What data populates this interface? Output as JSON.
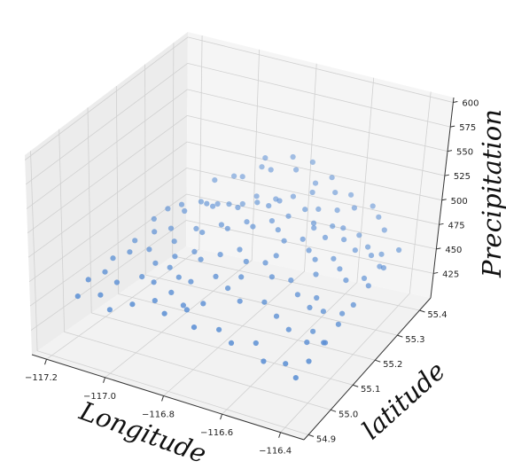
{
  "chart_data": {
    "type": "scatter",
    "title": "",
    "xlabel": "Longitude",
    "ylabel": "latitude",
    "zlabel": "Precipitation",
    "xlim": [
      -117.25,
      -116.32
    ],
    "ylim": [
      54.88,
      55.45
    ],
    "zlim": [
      400,
      605
    ],
    "xticks": [
      "−117.2",
      "−117.0",
      "−116.8",
      "−116.6",
      "−116.4"
    ],
    "xtick_values": [
      -117.2,
      -117.0,
      -116.8,
      -116.6,
      -116.4
    ],
    "yticks": [
      "54.9",
      "55.0",
      "55.1",
      "55.2",
      "55.3",
      "55.4"
    ],
    "ytick_values": [
      54.9,
      55.0,
      55.1,
      55.2,
      55.3,
      55.4
    ],
    "zticks": [
      "425",
      "450",
      "475",
      "500",
      "525",
      "550",
      "575",
      "600"
    ],
    "ztick_values": [
      425,
      450,
      475,
      500,
      525,
      550,
      575,
      600
    ],
    "grid": true,
    "marker_color": "#5b8fd4",
    "points": [
      [
        -117.13,
        55.26,
        480
      ],
      [
        -117.1,
        55.28,
        482
      ],
      [
        -117.08,
        55.27,
        479
      ],
      [
        -117.05,
        55.3,
        484
      ],
      [
        -117.02,
        55.29,
        486
      ],
      [
        -117.0,
        55.31,
        483
      ],
      [
        -116.98,
        55.27,
        490
      ],
      [
        -116.95,
        55.3,
        488
      ],
      [
        -116.92,
        55.32,
        486
      ],
      [
        -116.9,
        55.28,
        492
      ],
      [
        -116.88,
        55.33,
        494
      ],
      [
        -116.85,
        55.3,
        496
      ],
      [
        -116.82,
        55.34,
        493
      ],
      [
        -116.8,
        55.29,
        498
      ],
      [
        -116.78,
        55.31,
        500
      ],
      [
        -116.75,
        55.33,
        502
      ],
      [
        -116.72,
        55.28,
        495
      ],
      [
        -116.7,
        55.35,
        505
      ],
      [
        -116.68,
        55.3,
        500
      ],
      [
        -116.65,
        55.32,
        498
      ],
      [
        -116.62,
        55.27,
        492
      ],
      [
        -116.6,
        55.34,
        496
      ],
      [
        -116.58,
        55.3,
        490
      ],
      [
        -116.55,
        55.31,
        488
      ],
      [
        -116.52,
        55.28,
        485
      ],
      [
        -116.5,
        55.32,
        482
      ],
      [
        -116.47,
        55.27,
        480
      ],
      [
        -116.45,
        55.3,
        478
      ],
      [
        -116.42,
        55.28,
        476
      ],
      [
        -116.4,
        55.3,
        474
      ],
      [
        -116.38,
        55.27,
        470
      ],
      [
        -117.12,
        55.2,
        470
      ],
      [
        -117.08,
        55.22,
        472
      ],
      [
        -117.04,
        55.19,
        468
      ],
      [
        -117.0,
        55.23,
        475
      ],
      [
        -116.96,
        55.21,
        478
      ],
      [
        -116.92,
        55.24,
        482
      ],
      [
        -116.88,
        55.22,
        485
      ],
      [
        -116.84,
        55.25,
        488
      ],
      [
        -116.8,
        55.23,
        490
      ],
      [
        -116.76,
        55.26,
        492
      ],
      [
        -116.72,
        55.24,
        490
      ],
      [
        -116.68,
        55.22,
        486
      ],
      [
        -116.64,
        55.25,
        484
      ],
      [
        -116.6,
        55.23,
        480
      ],
      [
        -116.56,
        55.21,
        478
      ],
      [
        -116.52,
        55.24,
        475
      ],
      [
        -116.48,
        55.22,
        472
      ],
      [
        -116.44,
        55.2,
        468
      ],
      [
        -116.4,
        55.23,
        466
      ],
      [
        -117.15,
        55.14,
        460
      ],
      [
        -117.1,
        55.16,
        462
      ],
      [
        -117.05,
        55.13,
        458
      ],
      [
        -117.0,
        55.15,
        464
      ],
      [
        -116.95,
        55.17,
        468
      ],
      [
        -116.9,
        55.14,
        470
      ],
      [
        -116.85,
        55.16,
        474
      ],
      [
        -116.8,
        55.18,
        478
      ],
      [
        -116.75,
        55.15,
        476
      ],
      [
        -116.7,
        55.17,
        474
      ],
      [
        -116.65,
        55.14,
        470
      ],
      [
        -116.6,
        55.16,
        466
      ],
      [
        -116.55,
        55.13,
        462
      ],
      [
        -116.5,
        55.15,
        458
      ],
      [
        -116.45,
        55.12,
        455
      ],
      [
        -116.4,
        55.14,
        452
      ],
      [
        -117.18,
        55.08,
        450
      ],
      [
        -117.12,
        55.06,
        448
      ],
      [
        -117.06,
        55.09,
        452
      ],
      [
        -117.0,
        55.07,
        455
      ],
      [
        -116.94,
        55.1,
        458
      ],
      [
        -116.88,
        55.08,
        462
      ],
      [
        -116.82,
        55.11,
        465
      ],
      [
        -116.76,
        55.09,
        462
      ],
      [
        -116.7,
        55.07,
        458
      ],
      [
        -116.64,
        55.1,
        455
      ],
      [
        -116.58,
        55.08,
        450
      ],
      [
        -116.52,
        55.06,
        446
      ],
      [
        -116.46,
        55.09,
        442
      ],
      [
        -116.4,
        55.07,
        440
      ],
      [
        -117.2,
        55.0,
        440
      ],
      [
        -117.14,
        55.02,
        442
      ],
      [
        -117.08,
        54.99,
        438
      ],
      [
        -117.02,
        55.01,
        444
      ],
      [
        -116.96,
        55.03,
        448
      ],
      [
        -116.9,
        55.0,
        446
      ],
      [
        -116.84,
        55.02,
        450
      ],
      [
        -116.78,
        54.98,
        446
      ],
      [
        -116.72,
        55.01,
        442
      ],
      [
        -116.66,
        54.99,
        438
      ],
      [
        -116.6,
        55.02,
        436
      ],
      [
        -116.54,
        54.98,
        432
      ],
      [
        -116.48,
        55.0,
        430
      ],
      [
        -116.42,
        54.97,
        428
      ],
      [
        -116.9,
        55.38,
        520
      ],
      [
        -116.86,
        55.36,
        515
      ],
      [
        -116.82,
        55.4,
        522
      ],
      [
        -116.78,
        55.37,
        518
      ],
      [
        -116.74,
        55.39,
        524
      ],
      [
        -116.7,
        55.36,
        512
      ],
      [
        -116.66,
        55.38,
        516
      ],
      [
        -116.62,
        55.35,
        510
      ],
      [
        -116.58,
        55.37,
        506
      ],
      [
        -116.54,
        55.34,
        502
      ],
      [
        -117.05,
        55.35,
        495
      ],
      [
        -117.0,
        55.37,
        498
      ],
      [
        -116.96,
        55.36,
        502
      ],
      [
        -116.92,
        55.39,
        508
      ],
      [
        -116.5,
        55.37,
        500
      ],
      [
        -116.46,
        55.35,
        496
      ],
      [
        -116.42,
        55.33,
        490
      ],
      [
        -116.34,
        55.3,
        482
      ],
      [
        -116.35,
        55.25,
        475
      ],
      [
        -116.36,
        55.2,
        468
      ],
      [
        -116.37,
        55.15,
        460
      ],
      [
        -116.38,
        55.1,
        452
      ],
      [
        -116.39,
        55.05,
        445
      ],
      [
        -116.4,
        55.0,
        438
      ],
      [
        -117.16,
        55.24,
        472
      ],
      [
        -117.17,
        55.18,
        462
      ],
      [
        -117.19,
        55.12,
        455
      ],
      [
        -117.21,
        55.05,
        446
      ],
      [
        -116.99,
        55.12,
        460
      ],
      [
        -116.93,
        55.06,
        452
      ],
      [
        -116.87,
        55.04,
        448
      ],
      [
        -116.81,
        55.05,
        452
      ],
      [
        -116.74,
        55.12,
        468
      ],
      [
        -116.68,
        55.19,
        478
      ],
      [
        -116.63,
        55.28,
        494
      ],
      [
        -116.57,
        55.26,
        488
      ],
      [
        -116.53,
        55.18,
        472
      ],
      [
        -116.49,
        55.11,
        458
      ],
      [
        -116.44,
        55.04,
        444
      ]
    ]
  }
}
